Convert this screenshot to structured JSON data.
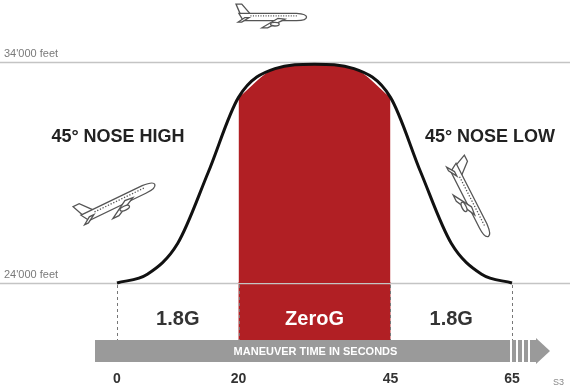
{
  "chart_data": {
    "type": "line",
    "color": "#111111",
    "x": [
      0,
      5,
      10,
      15,
      20,
      26,
      32.5,
      39,
      45,
      50,
      55,
      60,
      65
    ],
    "values": [
      24000,
      24400,
      25800,
      29000,
      32400,
      33700,
      33900,
      33700,
      32400,
      29000,
      25800,
      24400,
      24000
    ],
    "xlim": [
      0,
      65
    ],
    "xticks": [
      0,
      20,
      45,
      65
    ],
    "x_label": "MANEUVER TIME IN SECONDS",
    "ylim": [
      24000,
      34000
    ],
    "yticks": [
      {
        "value": 24000,
        "label": "24'000 feet"
      },
      {
        "value": 34000,
        "label": "34'000 feet"
      }
    ],
    "grid": true,
    "phases": [
      {
        "start": 0,
        "end": 20,
        "label": "1.8G"
      },
      {
        "start": 20,
        "end": 45,
        "label": "ZeroG",
        "color": "#b11f24"
      },
      {
        "start": 45,
        "end": 65,
        "label": "1.8G"
      }
    ],
    "annotations": [
      "45° NOSE HIGH",
      "45° NOSE LOW"
    ],
    "credit": "S3"
  }
}
